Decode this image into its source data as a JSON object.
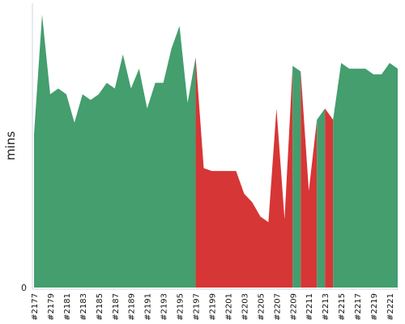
{
  "chart_data": {
    "type": "area",
    "ylabel": "mins",
    "ylim": [
      0,
      100
    ],
    "y_ticks": [
      {
        "value": 0,
        "label": "0"
      }
    ],
    "grid": false,
    "legend": "none",
    "colors": {
      "success": "#449e6e",
      "failure": "#d63635",
      "axis": "#cfd6e6"
    },
    "x": [
      "#2177",
      "#2178",
      "#2179",
      "#2180",
      "#2181",
      "#2182",
      "#2183",
      "#2184",
      "#2185",
      "#2186",
      "#2187",
      "#2188",
      "#2189",
      "#2190",
      "#2191",
      "#2192",
      "#2193",
      "#2194",
      "#2195",
      "#2196",
      "#2197",
      "#2198",
      "#2199",
      "#2200",
      "#2201",
      "#2202",
      "#2203",
      "#2204",
      "#2205",
      "#2206",
      "#2207",
      "#2208",
      "#2209",
      "#2210",
      "#2211",
      "#2212",
      "#2213",
      "#2214",
      "#2215",
      "#2216",
      "#2217",
      "#2218",
      "#2219",
      "#2220",
      "#2221",
      "#2222"
    ],
    "x_tick_labels": [
      "#2177",
      "#2179",
      "#2181",
      "#2183",
      "#2185",
      "#2187",
      "#2189",
      "#2191",
      "#2193",
      "#2195",
      "#2197",
      "#2199",
      "#2201",
      "#2203",
      "#2205",
      "#2207",
      "#2209",
      "#2211",
      "#2213",
      "#2215",
      "#2217",
      "#2219",
      "#2221"
    ],
    "values": [
      54,
      96,
      68,
      70,
      68,
      58,
      68,
      66,
      68,
      72,
      70,
      82,
      70,
      77,
      63,
      72,
      72,
      84,
      92,
      65,
      81,
      42,
      41,
      41,
      41,
      41,
      33,
      30,
      25,
      23,
      63,
      24,
      78,
      76,
      34,
      59,
      63,
      59,
      79,
      77,
      77,
      77,
      75,
      75,
      79,
      77
    ],
    "status": [
      "success",
      "success",
      "success",
      "success",
      "success",
      "success",
      "success",
      "success",
      "success",
      "success",
      "success",
      "success",
      "success",
      "success",
      "success",
      "success",
      "success",
      "success",
      "success",
      "success",
      "failure",
      "failure",
      "failure",
      "failure",
      "failure",
      "failure",
      "failure",
      "failure",
      "failure",
      "failure",
      "failure",
      "failure",
      "success",
      "failure",
      "failure",
      "success",
      "failure",
      "success",
      "success",
      "success",
      "success",
      "success",
      "success",
      "success",
      "success",
      "success"
    ]
  }
}
